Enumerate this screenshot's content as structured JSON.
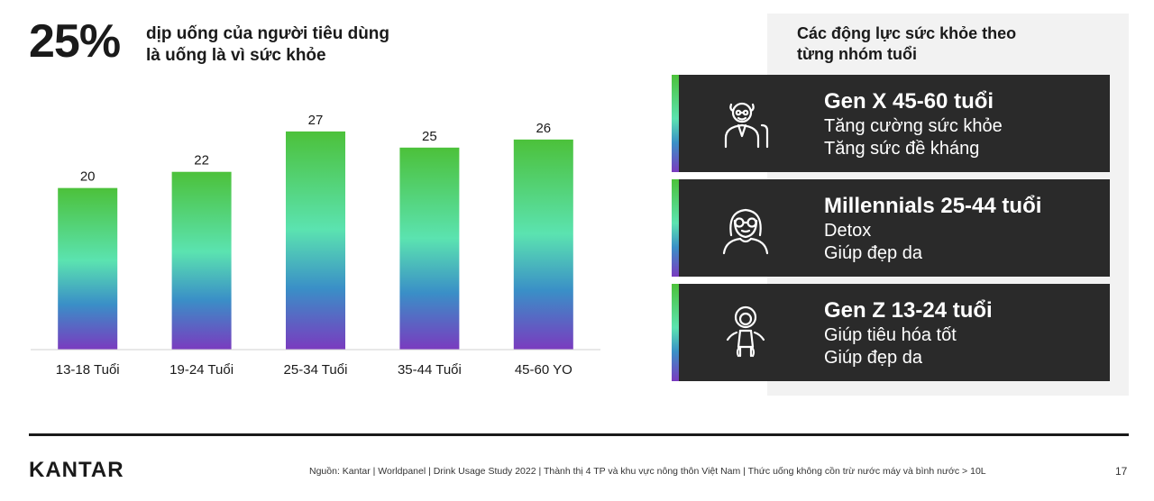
{
  "headline": {
    "percent": "25%",
    "line1": "dịp uống của người tiêu dùng",
    "line2": "là uống là vì sức khỏe"
  },
  "chart_data": {
    "type": "bar",
    "categories": [
      "13-18 Tuổi",
      "19-24 Tuổi",
      "25-34 Tuổi",
      "35-44 Tuổi",
      "45-60 YO"
    ],
    "values": [
      20,
      22,
      27,
      25,
      26
    ],
    "title": "",
    "xlabel": "",
    "ylabel": "",
    "ylim": [
      0,
      31
    ],
    "grid": false,
    "legend": "none",
    "colors": {
      "gradient_top": "#4cc13a",
      "gradient_mid": "#5be3b0",
      "gradient_lower": "#3a8fc7",
      "gradient_bottom": "#7a3bbf"
    }
  },
  "panel": {
    "title_line1": "Các động lực sức khỏe theo",
    "title_line2": "từng nhóm tuổi",
    "cards": [
      {
        "icon": "elderly-person-icon",
        "title": "Gen X 45-60 tuổi",
        "line1": "Tăng cường sức khỏe",
        "line2": "Tăng sức đề kháng"
      },
      {
        "icon": "woman-glasses-icon",
        "title": "Millennials 25-44 tuổi",
        "line1": "Detox",
        "line2": "Giúp đẹp da"
      },
      {
        "icon": "child-icon",
        "title": "Gen Z 13-24 tuổi",
        "line1": "Giúp tiêu hóa tốt",
        "line2": "Giúp đẹp da"
      }
    ]
  },
  "footer": {
    "logo": "KANTAR",
    "source": "Nguồn: Kantar | Worldpanel | Drink Usage Study 2022 | Thành thị 4 TP và khu vực nông thôn Việt Nam | Thức uống không cồn trừ nước máy và bình nước > 10L",
    "page_number": "17"
  }
}
